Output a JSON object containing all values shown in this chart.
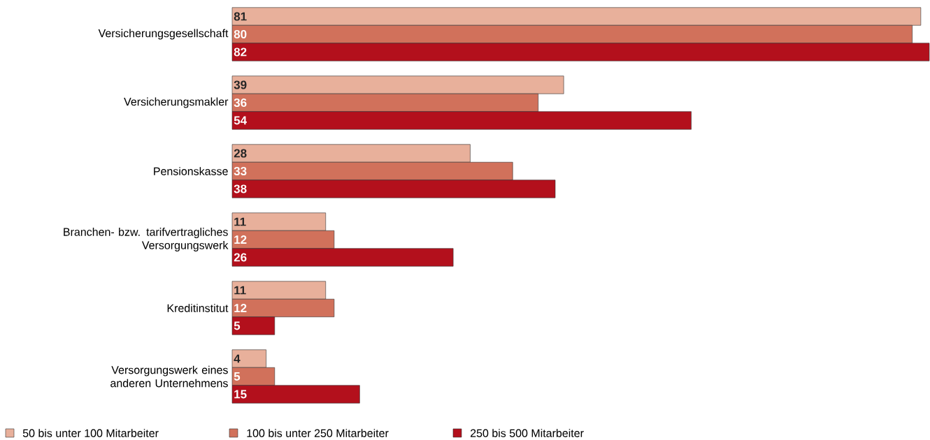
{
  "chart_data": {
    "type": "bar",
    "orientation": "horizontal",
    "categories": [
      "Versicherungsgesellschaft",
      "Versicherungsmakler",
      "Pensionskasse",
      "Branchen- bzw. tarifvertragliches Versorgungswerk",
      "Kreditinstitut",
      "Versorgungswerk eines anderen Unternehmens"
    ],
    "series": [
      {
        "name": "50 bis unter 100 Mitarbeiter",
        "color": "#e8b09b",
        "values": [
          81,
          39,
          28,
          11,
          11,
          4
        ]
      },
      {
        "name": "100 bis unter 250 Mitarbeiter",
        "color": "#d1715b",
        "values": [
          80,
          36,
          33,
          12,
          12,
          5
        ]
      },
      {
        "name": "250 bis 500 Mitarbeiter",
        "color": "#b3101c",
        "values": [
          82,
          54,
          38,
          26,
          5,
          15
        ]
      }
    ],
    "data_labels": true,
    "legend": "bottom"
  }
}
